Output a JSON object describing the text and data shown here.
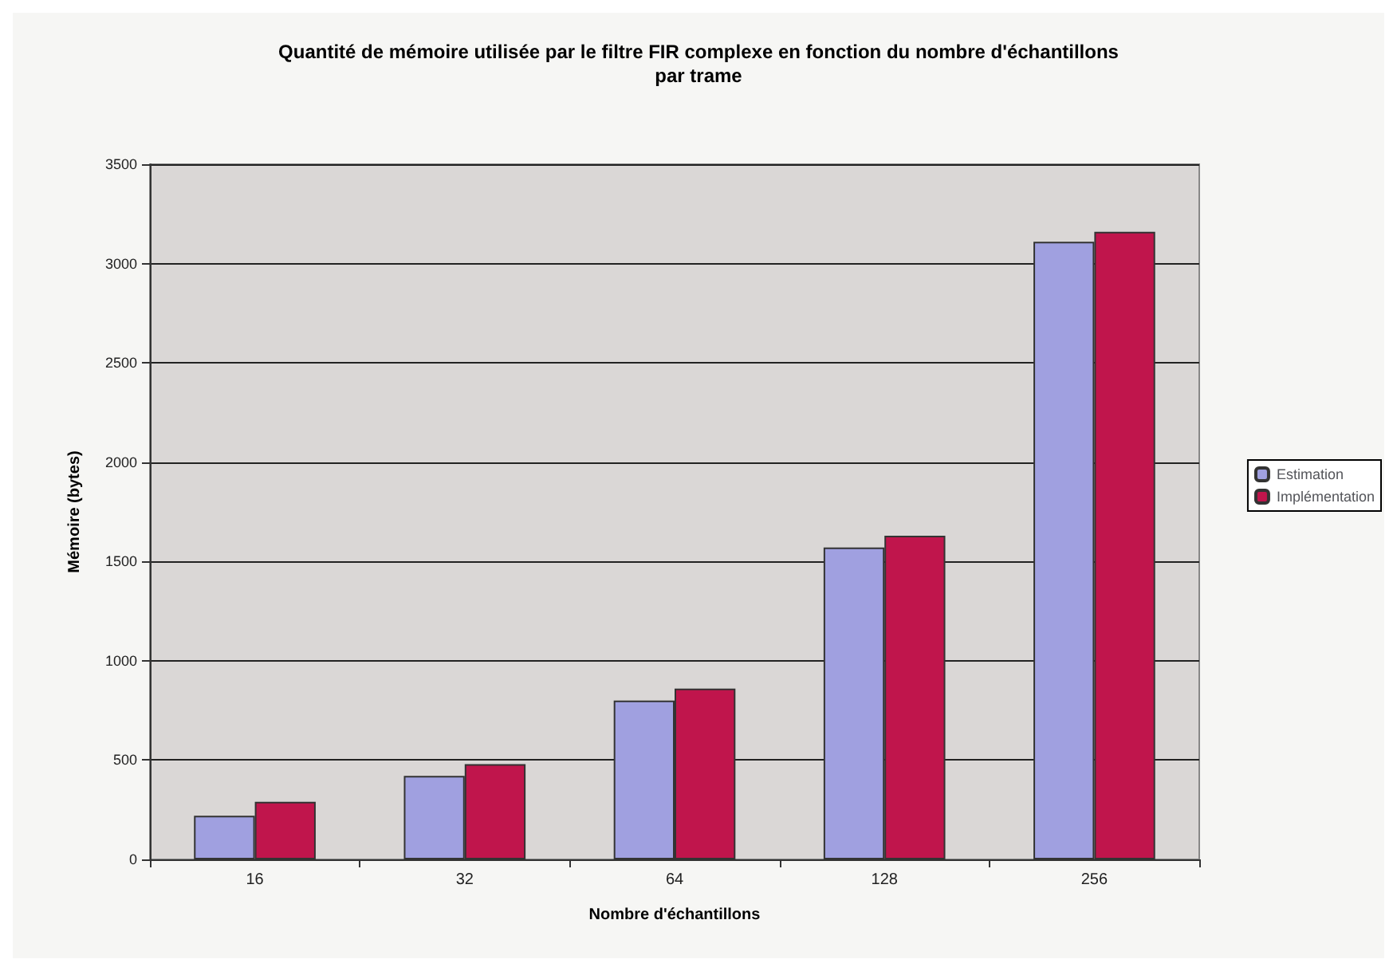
{
  "chart_data": {
    "type": "bar",
    "title": "Quantité de mémoire utilisée par le filtre FIR complexe en fonction du nombre d'échantillons\npar trame",
    "xlabel": "Nombre d'échantillons",
    "ylabel": "Mémoire (bytes)",
    "categories": [
      "16",
      "32",
      "64",
      "128",
      "256"
    ],
    "series": [
      {
        "name": "Estimation",
        "color": "#a0a0e0",
        "values": [
          220,
          420,
          800,
          1570,
          3110
        ]
      },
      {
        "name": "Implémentation",
        "color": "#c0154c",
        "values": [
          290,
          480,
          860,
          1630,
          3160
        ]
      }
    ],
    "ylim": [
      0,
      3500
    ],
    "yticks": [
      0,
      500,
      1000,
      1500,
      2000,
      2500,
      3000,
      3500
    ],
    "grid": "y",
    "legend": "right"
  }
}
